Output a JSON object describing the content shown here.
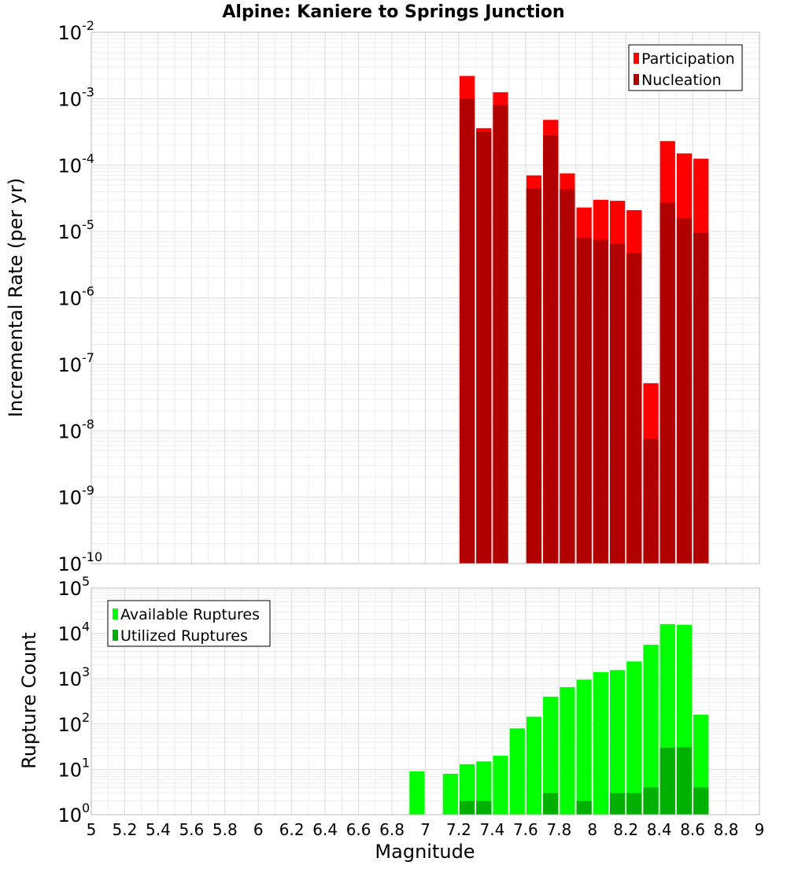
{
  "chart_data": [
    {
      "type": "bar",
      "title": "Alpine: Kaniere to Springs Junction",
      "ylabel": "Incremental Rate (per yr)",
      "xlabel": "",
      "xlim": [
        5,
        9
      ],
      "ylim": [
        1e-10,
        0.01
      ],
      "yscale": "log",
      "grid": true,
      "legend_position": "top-right",
      "x": [
        7.25,
        7.35,
        7.45,
        7.65,
        7.75,
        7.85,
        7.95,
        8.05,
        8.15,
        8.25,
        8.35,
        8.45,
        8.55,
        8.65
      ],
      "series": [
        {
          "name": "Participation",
          "color": "#ff0000",
          "values": [
            0.0022,
            0.00036,
            0.00125,
            7e-05,
            0.00048,
            7.5e-05,
            2.3e-05,
            3e-05,
            2.9e-05,
            2.1e-05,
            5.2e-08,
            0.00023,
            0.00015,
            0.000125
          ]
        },
        {
          "name": "Nucleation",
          "color": "#b00000",
          "values": [
            0.001,
            0.00032,
            0.0008,
            4.5e-05,
            0.00028,
            4.3e-05,
            8e-06,
            7.5e-06,
            6.5e-06,
            4.7e-06,
            7.5e-09,
            2.7e-05,
            1.6e-05,
            9.5e-06
          ]
        }
      ]
    },
    {
      "type": "bar",
      "title": "",
      "ylabel": "Rupture Count",
      "xlabel": "Magnitude",
      "xlim": [
        5,
        9
      ],
      "ylim": [
        1,
        100000.0
      ],
      "yscale": "log",
      "grid": true,
      "legend_position": "top-left",
      "x": [
        6.95,
        7.15,
        7.25,
        7.35,
        7.45,
        7.55,
        7.65,
        7.75,
        7.85,
        7.95,
        8.05,
        8.15,
        8.25,
        8.35,
        8.45,
        8.55,
        8.65
      ],
      "series": [
        {
          "name": "Available Ruptures",
          "color": "#00ff00",
          "values": [
            9,
            8,
            13,
            15,
            20,
            80,
            145,
            400,
            650,
            950,
            1400,
            1550,
            2400,
            5600,
            16000,
            15500,
            160
          ]
        },
        {
          "name": "Utilized Ruptures",
          "color": "#00b000",
          "values": [
            null,
            null,
            2,
            2,
            1,
            null,
            1,
            3,
            1,
            2,
            1,
            3,
            3,
            4,
            30,
            31,
            4
          ]
        }
      ]
    }
  ],
  "xticks": [
    "5",
    "5.2",
    "5.4",
    "5.6",
    "5.8",
    "6",
    "6.2",
    "6.4",
    "6.6",
    "6.8",
    "7",
    "7.2",
    "7.4",
    "7.6",
    "7.8",
    "8",
    "8.2",
    "8.4",
    "8.6",
    "8.8",
    "9"
  ],
  "top_yticks": [
    {
      "base": "10",
      "exp": "-2"
    },
    {
      "base": "10",
      "exp": "-3"
    },
    {
      "base": "10",
      "exp": "-4"
    },
    {
      "base": "10",
      "exp": "-5"
    },
    {
      "base": "10",
      "exp": "-6"
    },
    {
      "base": "10",
      "exp": "-7"
    },
    {
      "base": "10",
      "exp": "-8"
    },
    {
      "base": "10",
      "exp": "-9"
    },
    {
      "base": "10",
      "exp": "-10"
    }
  ],
  "bottom_yticks": [
    {
      "base": "10",
      "exp": "5"
    },
    {
      "base": "10",
      "exp": "4"
    },
    {
      "base": "10",
      "exp": "3"
    },
    {
      "base": "10",
      "exp": "2"
    },
    {
      "base": "10",
      "exp": "1"
    },
    {
      "base": "10",
      "exp": "0"
    }
  ]
}
